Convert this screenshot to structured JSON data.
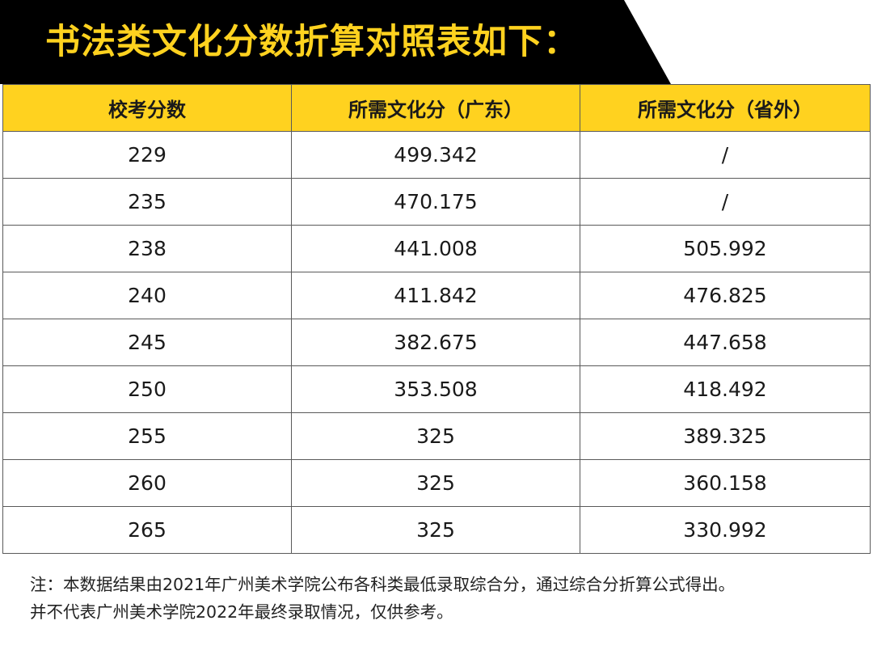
{
  "banner": {
    "title": "书法类文化分数折算对照表如下："
  },
  "colors": {
    "banner_bg": "#000000",
    "title": "#FFD21F",
    "header_bg": "#FFD21F",
    "border": "#5a5a5a"
  },
  "table": {
    "headers": [
      "校考分数",
      "所需文化分（广东）",
      "所需文化分（省外）"
    ],
    "rows": [
      [
        "229",
        "499.342",
        "/"
      ],
      [
        "235",
        "470.175",
        "/"
      ],
      [
        "238",
        "441.008",
        "505.992"
      ],
      [
        "240",
        "411.842",
        "476.825"
      ],
      [
        "245",
        "382.675",
        "447.658"
      ],
      [
        "250",
        "353.508",
        "418.492"
      ],
      [
        "255",
        "325",
        "389.325"
      ],
      [
        "260",
        "325",
        "360.158"
      ],
      [
        "265",
        "325",
        "330.992"
      ]
    ]
  },
  "note": {
    "line1": "注：本数据结果由2021年广州美术学院公布各科类最低录取综合分，通过综合分折算公式得出。",
    "line2": "并不代表广州美术学院2022年最终录取情况，仅供参考。"
  }
}
